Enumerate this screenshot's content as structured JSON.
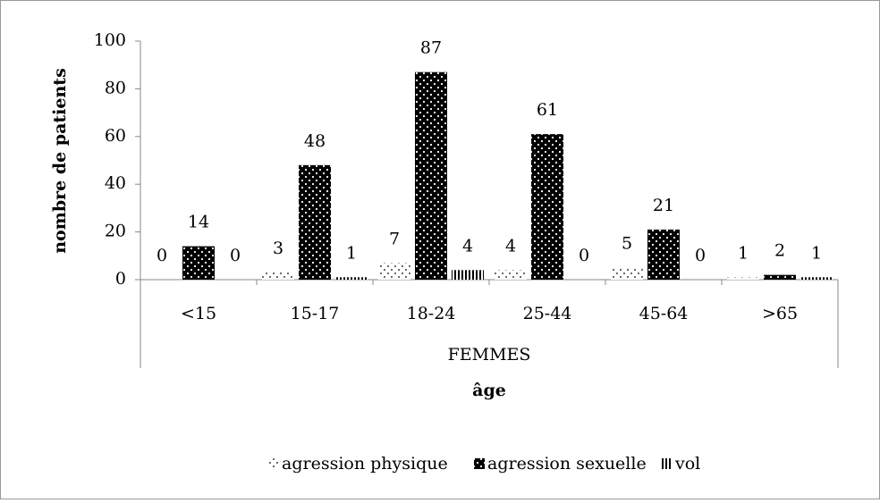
{
  "chart_data": {
    "type": "bar",
    "y_label": "nombre de patients",
    "x_label": "âge",
    "x_group_label": "FEMMES",
    "categories": [
      "<15",
      "15-17",
      "18-24",
      "25-44",
      "45-64",
      ">65"
    ],
    "series": [
      {
        "name": "agression physique",
        "color": "#000000",
        "values": [
          0,
          3,
          7,
          4,
          5,
          1
        ]
      },
      {
        "name": "agression sexuelle",
        "color": "#000000",
        "values": [
          14,
          48,
          87,
          61,
          21,
          2
        ]
      },
      {
        "name": "vol",
        "color": "#000000",
        "values": [
          0,
          1,
          4,
          0,
          0,
          1
        ]
      }
    ],
    "ylim": [
      0,
      100
    ],
    "yticks": [
      0,
      20,
      40,
      60,
      80,
      100
    ],
    "grid": false,
    "legend": "bottom"
  }
}
